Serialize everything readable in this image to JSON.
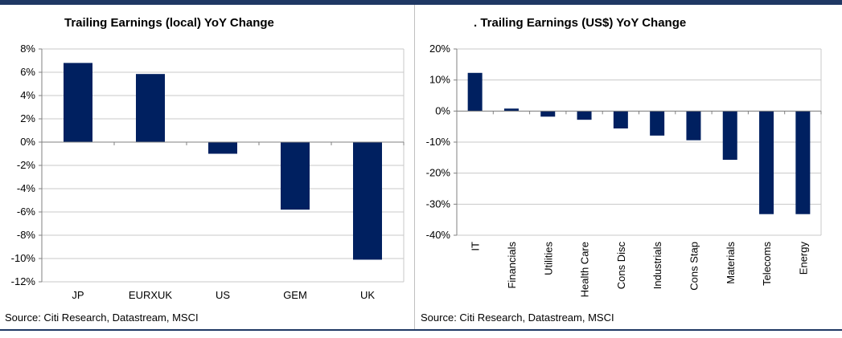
{
  "colors": {
    "bar": "#002060",
    "rule": "#1f3864",
    "grid": "#c8c8c8",
    "axis": "#808080"
  },
  "chart_data": [
    {
      "type": "bar",
      "title": "Trailing Earnings (local) YoY Change",
      "source": "Source: Citi Research, Datastream, MSCI",
      "categories": [
        "JP",
        "EURXUK",
        "US",
        "GEM",
        "UK"
      ],
      "values": [
        6.8,
        5.85,
        -1.0,
        -5.8,
        -10.1
      ],
      "ylim": [
        -12,
        8
      ],
      "yticks": [
        "8%",
        "6%",
        "4%",
        "2%",
        "0%",
        "-2%",
        "-4%",
        "-6%",
        "-8%",
        "-10%",
        "-12%"
      ],
      "xlabel": "",
      "ylabel": "",
      "grid": true,
      "label_orientation": "horizontal"
    },
    {
      "type": "bar",
      "title": ". Trailing Earnings (US$) YoY Change",
      "source": "Source: Citi Research, Datastream, MSCI",
      "categories": [
        "IT",
        "Financials",
        "Utilities",
        "Health Care",
        "Cons Disc",
        "Industrials",
        "Cons Stap",
        "Materials",
        "Telecoms",
        "Energy"
      ],
      "values": [
        12.3,
        0.8,
        -1.8,
        -2.8,
        -5.6,
        -7.9,
        -9.4,
        -15.7,
        -33.2,
        -33.2
      ],
      "ylim": [
        -40,
        20
      ],
      "yticks": [
        "20%",
        "10%",
        "0%",
        "-10%",
        "-20%",
        "-30%",
        "-40%"
      ],
      "xlabel": "",
      "ylabel": "",
      "grid": true,
      "label_orientation": "vertical"
    }
  ]
}
